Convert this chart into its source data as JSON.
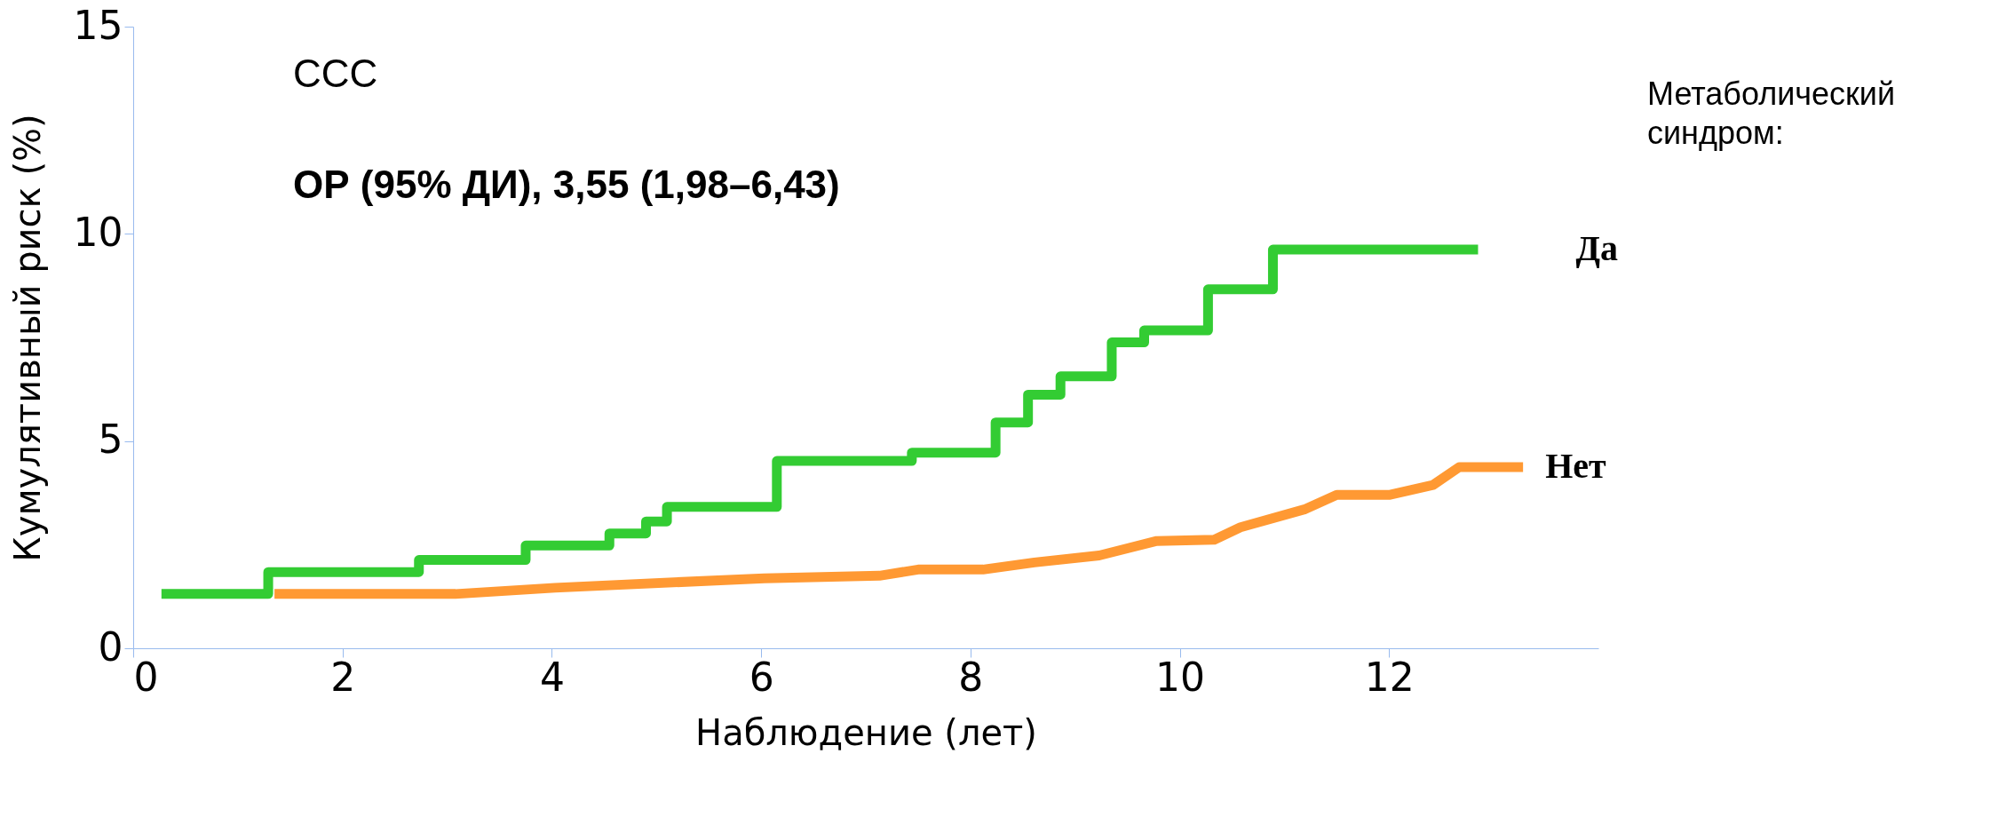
{
  "chart_data": {
    "type": "step",
    "xlabel": "Наблюдение (лет)",
    "ylabel": "Кумулятивный риск (%)",
    "legend_title": "Метаболический синдром:",
    "annotations": [
      "ССС",
      "ОР (95% ДИ), 3,55 (1,98–6,43)"
    ],
    "xlim": [
      0,
      14
    ],
    "xticks": [
      0,
      2,
      4,
      6,
      8,
      10,
      12
    ],
    "ylim": [
      0,
      15
    ],
    "yticks": [
      0,
      5,
      10,
      15
    ],
    "grid": false,
    "legend": false,
    "series": [
      {
        "name": "Да",
        "color": "#33cc33",
        "x": [
          0.27,
          1.29,
          2.73,
          3.75,
          4.55,
          4.9,
          5.1,
          6.15,
          7.44,
          8.24,
          8.55,
          8.86,
          9.35,
          9.66,
          10.27,
          10.89,
          12.85
        ],
        "values": [
          1.31,
          1.84,
          2.13,
          2.48,
          2.77,
          3.06,
          3.41,
          4.52,
          4.72,
          5.45,
          6.12,
          6.56,
          7.38,
          7.67,
          8.66,
          9.62,
          9.62
        ]
      },
      {
        "name": "Нет",
        "color": "#ff9933",
        "type": "line",
        "x": [
          1.35,
          3.08,
          4.03,
          6.03,
          7.13,
          7.5,
          8.12,
          8.61,
          9.23,
          9.78,
          10.33,
          10.58,
          11.19,
          11.5,
          12.0,
          12.42,
          12.67,
          13.28
        ],
        "values": [
          1.31,
          1.31,
          1.46,
          1.69,
          1.75,
          1.9,
          1.9,
          2.07,
          2.24,
          2.59,
          2.62,
          2.92,
          3.35,
          3.7,
          3.7,
          3.94,
          4.37,
          4.37
        ]
      }
    ]
  }
}
